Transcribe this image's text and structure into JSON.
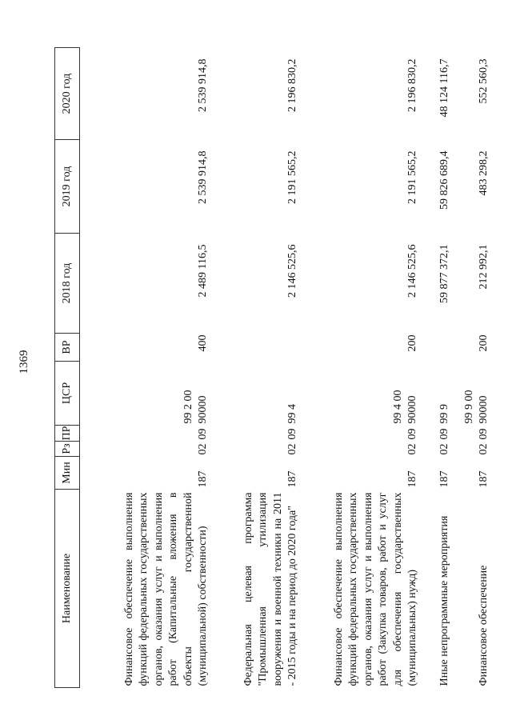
{
  "page_number": "1369",
  "headers": [
    "Наименование",
    "Мин",
    "Рз",
    "ПР",
    "ЦСР",
    "ВР",
    "2018 год",
    "2019 год",
    "2020 год"
  ],
  "rows": [
    {
      "name": "Финансовое обеспечение выполнения функций федеральных государственных органов, оказания услуг и выполнения работ (Капитальные вложения в объекты государственной (муниципальной) собственности)",
      "min": "187",
      "rz": "02",
      "pr": "09",
      "csr": "99 2 00 90000",
      "vr": "400",
      "y2018": "2 489 116,5",
      "y2019": "2 539 914,8",
      "y2020": "2 539 914,8"
    },
    {
      "name": "Федеральная целевая программа \"Промышленная утилизация вооружения и военной техники на 2011 - 2015 годы и на период до 2020 года\"",
      "min": "187",
      "rz": "02",
      "pr": "09",
      "csr": "99 4",
      "vr": "",
      "y2018": "2 146 525,6",
      "y2019": "2 191 565,2",
      "y2020": "2 196 830,2"
    },
    {
      "name": "Финансовое обеспечение выполнения функций федеральных государственных органов, оказания услуг и выполнения работ (Закупка товаров, работ и услуг для обеспечения государственных (муниципальных) нужд)",
      "min": "187",
      "rz": "02",
      "pr": "09",
      "csr": "99 4 00 90000",
      "vr": "200",
      "y2018": "2 146 525,6",
      "y2019": "2 191 565,2",
      "y2020": "2 196 830,2"
    },
    {
      "name": "Иные непрограммные мероприятия",
      "min": "187",
      "rz": "02",
      "pr": "09",
      "csr": "99 9",
      "vr": "",
      "y2018": "59 877 372,1",
      "y2019": "59 826 689,4",
      "y2020": "48 124 116,7"
    },
    {
      "name": "Финансовое обеспечение",
      "min": "187",
      "rz": "02",
      "pr": "09",
      "csr": "99 9 00 90000",
      "vr": "200",
      "y2018": "212 992,1",
      "y2019": "483 298,2",
      "y2020": "552 560,3"
    }
  ]
}
